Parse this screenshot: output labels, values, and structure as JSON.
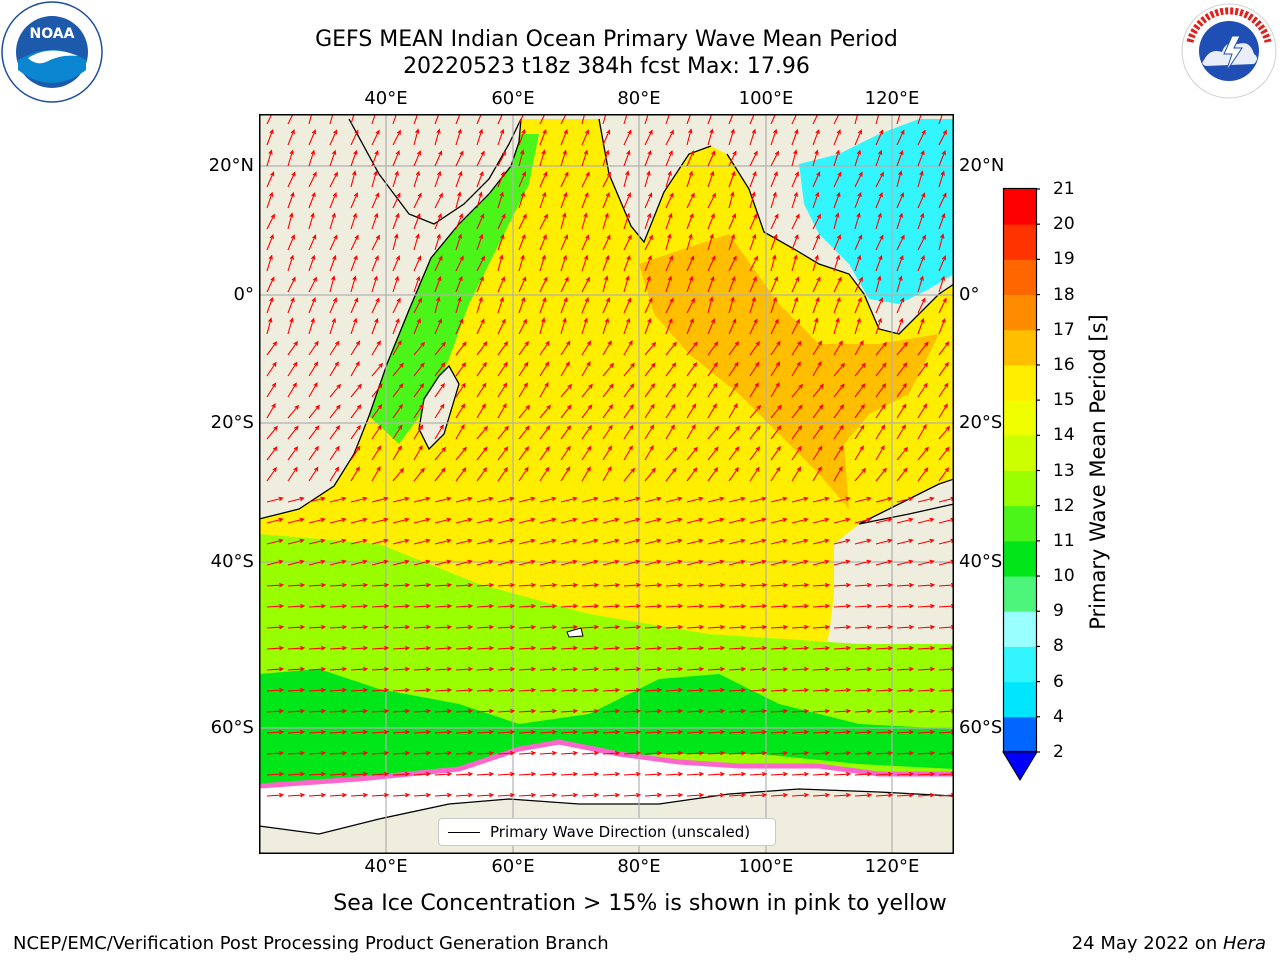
{
  "header": {
    "title_line1": "GEFS MEAN Indian Ocean Primary Wave Mean Period",
    "title_line2": "20220523 t18z 384h fcst   Max: 17.96"
  },
  "logos": {
    "noaa": {
      "icon": "noaa-logo-icon",
      "text": "NOAA",
      "ring_text": "NATIONAL OCEANIC AND ATMOSPHERIC ADMINISTRATION · U.S. DEPARTMENT OF COMMERCE"
    },
    "nws": {
      "icon": "nws-logo-icon",
      "ring_text": "NATIONAL WEATHER SERVICE"
    }
  },
  "map": {
    "lon_labels": [
      "40°E",
      "60°E",
      "80°E",
      "100°E",
      "120°E"
    ],
    "lat_labels": [
      "20°N",
      "0°",
      "20°S",
      "40°S",
      "60°S"
    ],
    "legend_label": "Primary Wave Direction (unscaled)",
    "colors": {
      "land": "#efeede",
      "ice_free_ocean": "#ffff00",
      "grid": "#b0b0b0",
      "arrow": "#ff0000",
      "sea_ice": "#ffffff"
    }
  },
  "colorbar": {
    "label": "Primary Wave Mean Period [s]",
    "ticks": [
      "2",
      "4",
      "6",
      "8",
      "9",
      "10",
      "11",
      "12",
      "13",
      "14",
      "15",
      "16",
      "17",
      "18",
      "19",
      "20",
      "21"
    ],
    "colors": [
      "#0066ff",
      "#00e6ff",
      "#33f5ff",
      "#99ffff",
      "#4df57a",
      "#00e619",
      "#4cf519",
      "#99ff00",
      "#ccff00",
      "#f0ff00",
      "#ffee00",
      "#ffbf00",
      "#ff8c00",
      "#ff6600",
      "#ff3300",
      "#ff0000"
    ],
    "under_color": "#0000ff"
  },
  "notes": {
    "sea_ice": "Sea Ice Concentration > 15% is shown in pink to yellow"
  },
  "footer": {
    "left": "NCEP/EMC/Verification Post Processing Product Generation Branch",
    "right_prefix": "24 May 2022 on ",
    "right_machine": "Hera"
  }
}
